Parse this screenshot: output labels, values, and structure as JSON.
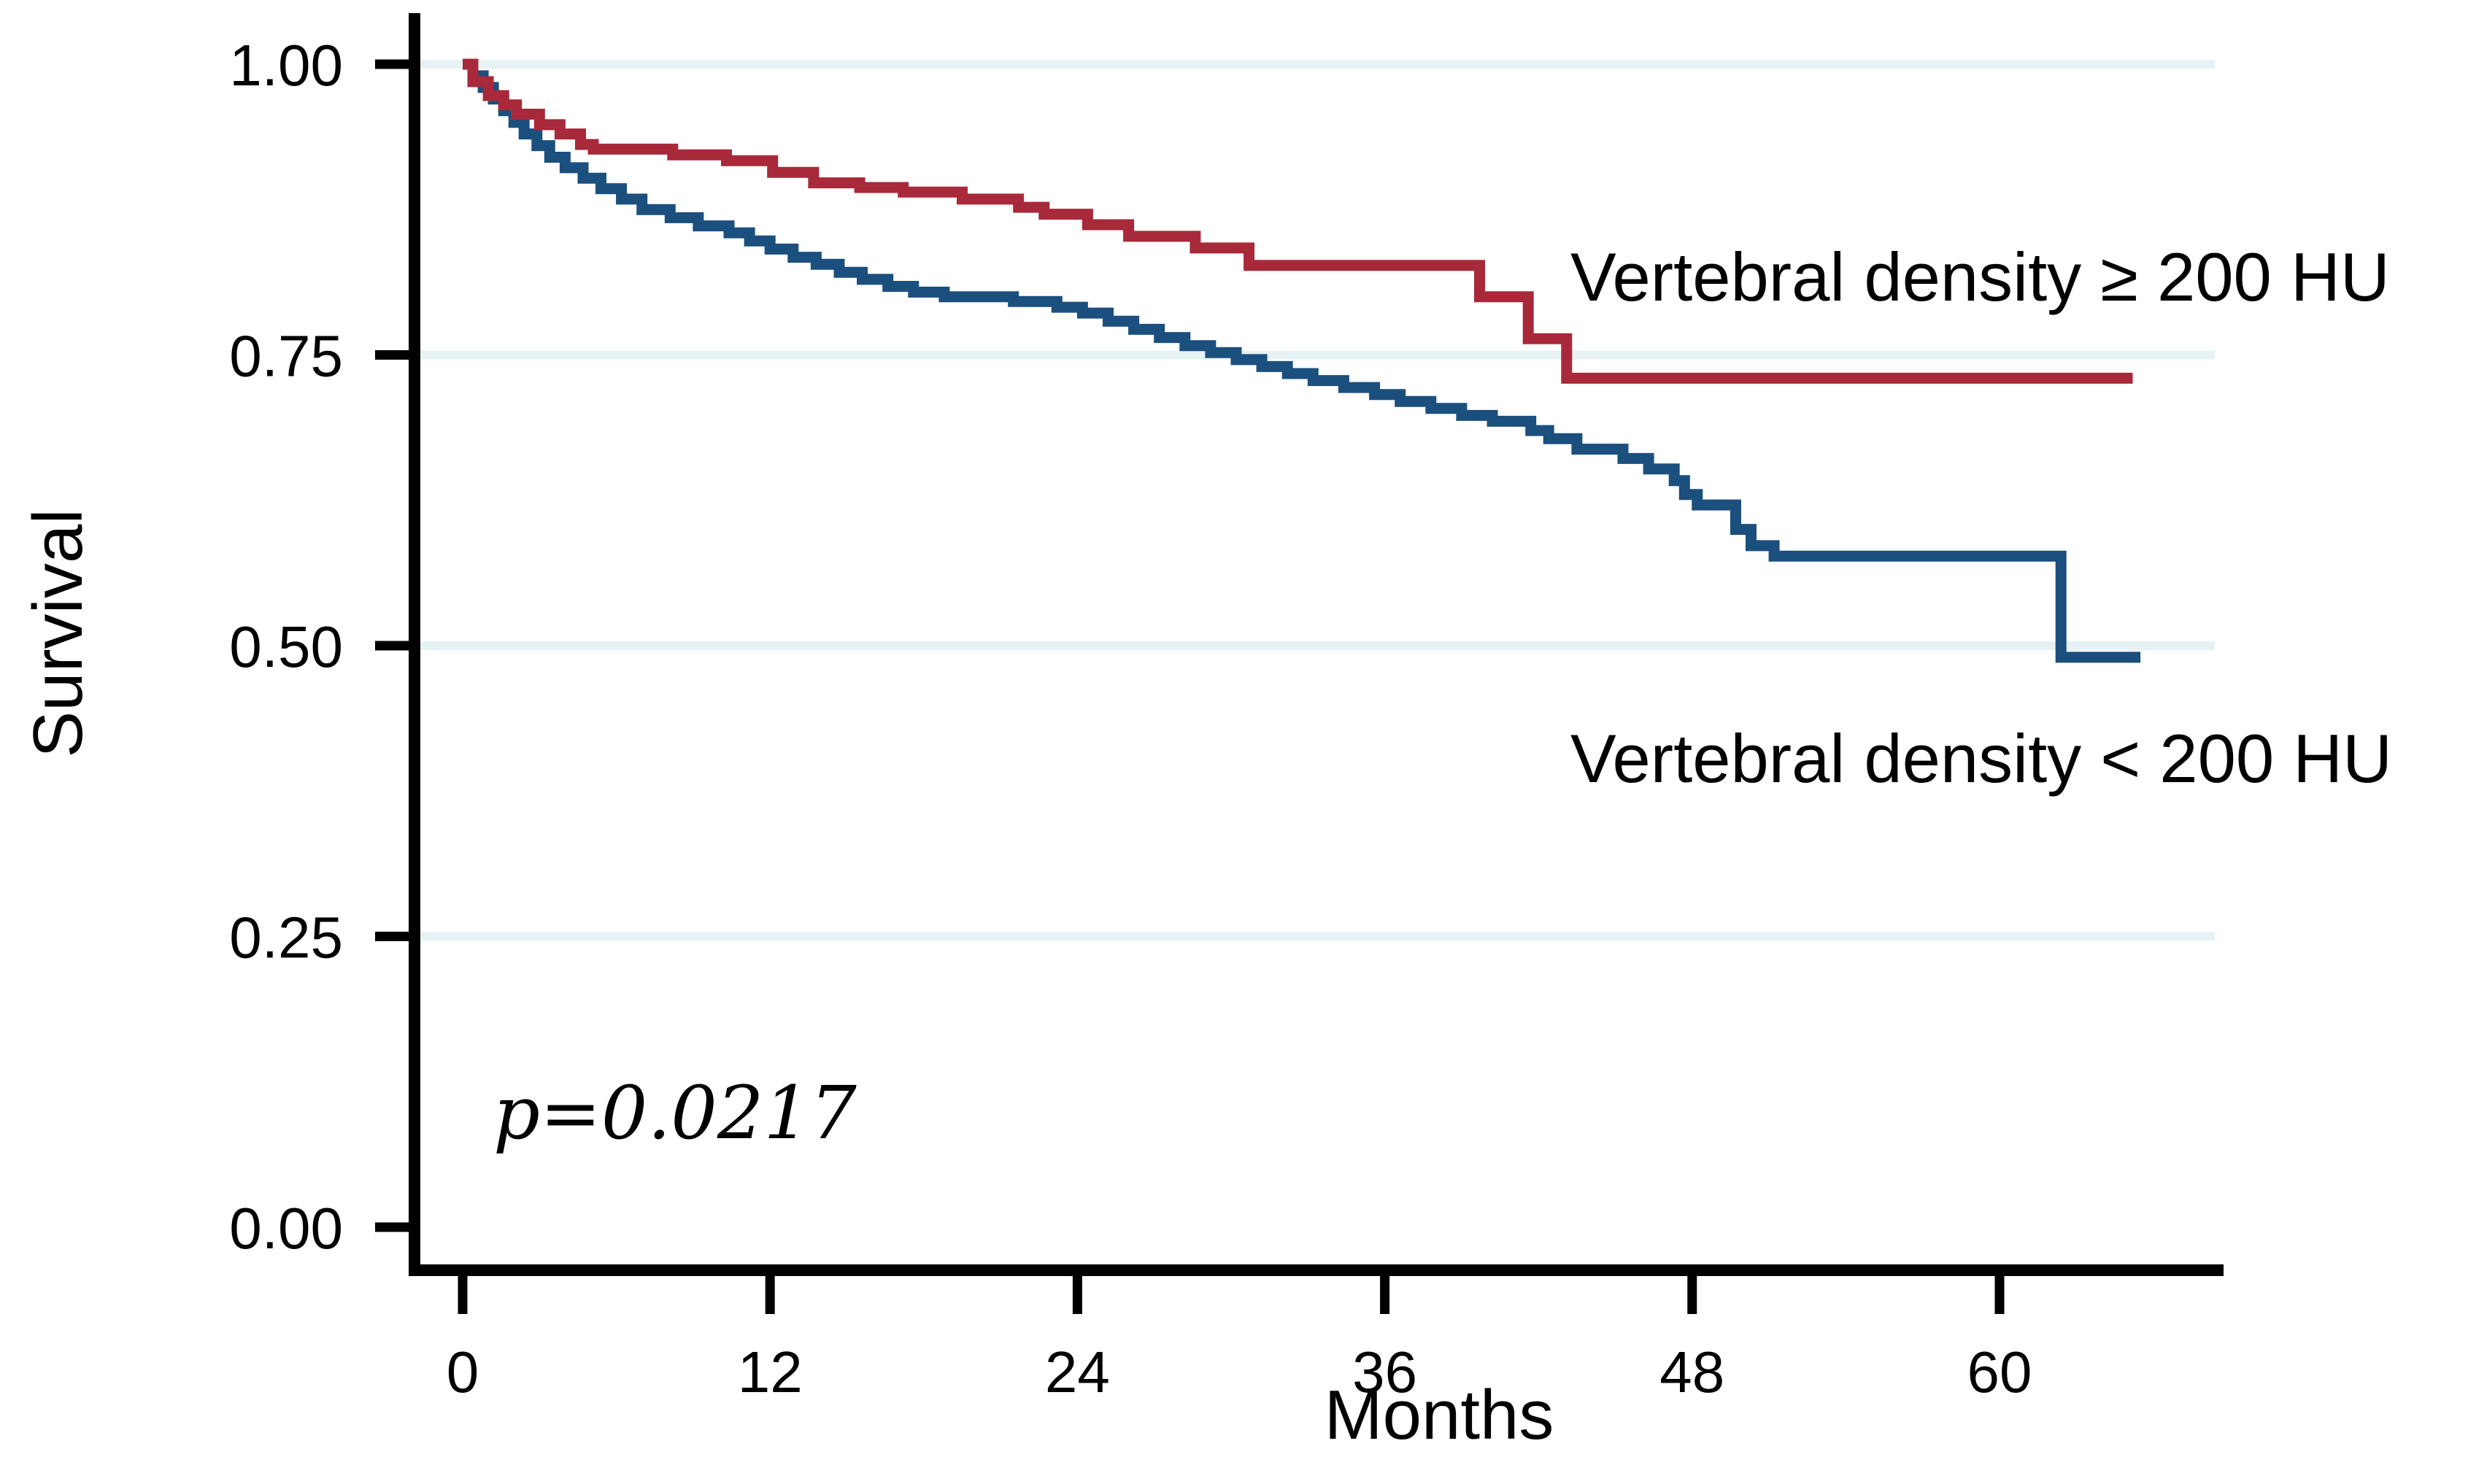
{
  "chart_data": {
    "type": "line",
    "subtype": "kaplan-meier-step",
    "title": "",
    "xlabel": "Months",
    "ylabel": "Survival",
    "grid": "horizontal-only",
    "legend_position": "annotated-next-to-curves",
    "xlim": [
      -2,
      68.7
    ],
    "ylim": [
      0,
      1.04
    ],
    "x_ticks": [
      {
        "label": "0",
        "value": 0
      },
      {
        "label": "12",
        "value": 12
      },
      {
        "label": "24",
        "value": 24
      },
      {
        "label": "36",
        "value": 36
      },
      {
        "label": "48",
        "value": 48
      },
      {
        "label": "60",
        "value": 60
      }
    ],
    "y_ticks": [
      {
        "label": "1.00",
        "value": 1.0
      },
      {
        "label": "0.75",
        "value": 0.75
      },
      {
        "label": "0.50",
        "value": 0.5
      },
      {
        "label": "0.25",
        "value": 0.25
      },
      {
        "label": "0.00",
        "value": 0.0
      }
    ],
    "annotations": [
      {
        "text": "p=0.0217",
        "style": "italic"
      }
    ],
    "series": [
      {
        "name": "Vertebral density < 200 HU",
        "color": "#1b4f7e",
        "points": [
          [
            0,
            1.0
          ],
          [
            0.4,
            0.99
          ],
          [
            0.8,
            0.98
          ],
          [
            1.2,
            0.97
          ],
          [
            1.6,
            0.96
          ],
          [
            2.0,
            0.95
          ],
          [
            2.4,
            0.94
          ],
          [
            2.9,
            0.93
          ],
          [
            3.4,
            0.92
          ],
          [
            4.0,
            0.911
          ],
          [
            4.7,
            0.902
          ],
          [
            5.4,
            0.893
          ],
          [
            6.2,
            0.884
          ],
          [
            7.0,
            0.875
          ],
          [
            8.1,
            0.868
          ],
          [
            9.2,
            0.861
          ],
          [
            10.4,
            0.855
          ],
          [
            11.2,
            0.848
          ],
          [
            12.0,
            0.841
          ],
          [
            12.9,
            0.834
          ],
          [
            13.8,
            0.828
          ],
          [
            14.7,
            0.821
          ],
          [
            15.6,
            0.815
          ],
          [
            16.6,
            0.809
          ],
          [
            17.6,
            0.804
          ],
          [
            18.8,
            0.8
          ],
          [
            21.5,
            0.796
          ],
          [
            23.2,
            0.791
          ],
          [
            24.2,
            0.786
          ],
          [
            25.2,
            0.779
          ],
          [
            26.2,
            0.772
          ],
          [
            27.2,
            0.765
          ],
          [
            28.2,
            0.758
          ],
          [
            29.2,
            0.752
          ],
          [
            30.2,
            0.746
          ],
          [
            31.2,
            0.74
          ],
          [
            32.2,
            0.734
          ],
          [
            33.2,
            0.728
          ],
          [
            34.4,
            0.722
          ],
          [
            35.6,
            0.716
          ],
          [
            36.6,
            0.71
          ],
          [
            37.8,
            0.704
          ],
          [
            39.0,
            0.698
          ],
          [
            40.2,
            0.693
          ],
          [
            41.7,
            0.685
          ],
          [
            42.4,
            0.678
          ],
          [
            43.5,
            0.669
          ],
          [
            45.3,
            0.661
          ],
          [
            46.3,
            0.652
          ],
          [
            47.3,
            0.642
          ],
          [
            47.7,
            0.63
          ],
          [
            48.2,
            0.621
          ],
          [
            49.7,
            0.6
          ],
          [
            50.3,
            0.586
          ],
          [
            51.2,
            0.577
          ],
          [
            62.4,
            0.49
          ],
          [
            65.5,
            0.49
          ]
        ]
      },
      {
        "name": "Vertebral density ≥ 200 HU",
        "color": "#a8293a",
        "points": [
          [
            0,
            1.0
          ],
          [
            0.4,
            0.985
          ],
          [
            1.0,
            0.973
          ],
          [
            1.6,
            0.965
          ],
          [
            2.1,
            0.957
          ],
          [
            3.0,
            0.948
          ],
          [
            3.8,
            0.94
          ],
          [
            4.6,
            0.931
          ],
          [
            5.1,
            0.927
          ],
          [
            8.2,
            0.922
          ],
          [
            10.3,
            0.917
          ],
          [
            12.1,
            0.907
          ],
          [
            13.7,
            0.898
          ],
          [
            15.5,
            0.894
          ],
          [
            17.2,
            0.89
          ],
          [
            19.5,
            0.884
          ],
          [
            21.7,
            0.877
          ],
          [
            22.7,
            0.871
          ],
          [
            24.4,
            0.862
          ],
          [
            26.0,
            0.852
          ],
          [
            28.6,
            0.842
          ],
          [
            30.7,
            0.827
          ],
          [
            39.7,
            0.8
          ],
          [
            41.6,
            0.764
          ],
          [
            43.1,
            0.73
          ],
          [
            65.2,
            0.73
          ]
        ]
      }
    ]
  },
  "labels": {
    "y_axis": "Survival",
    "x_axis": "Months",
    "legend_ge200": "Vertebral density ≥ 200 HU",
    "legend_lt200": "Vertebral density < 200 HU",
    "p_value": "p=0.0217"
  },
  "colors": {
    "curve_ge200": "#a8293a",
    "curve_lt200": "#1b4f7e",
    "gridline": "#e7f2f4",
    "axis": "#000000",
    "background": "#ffffff"
  }
}
